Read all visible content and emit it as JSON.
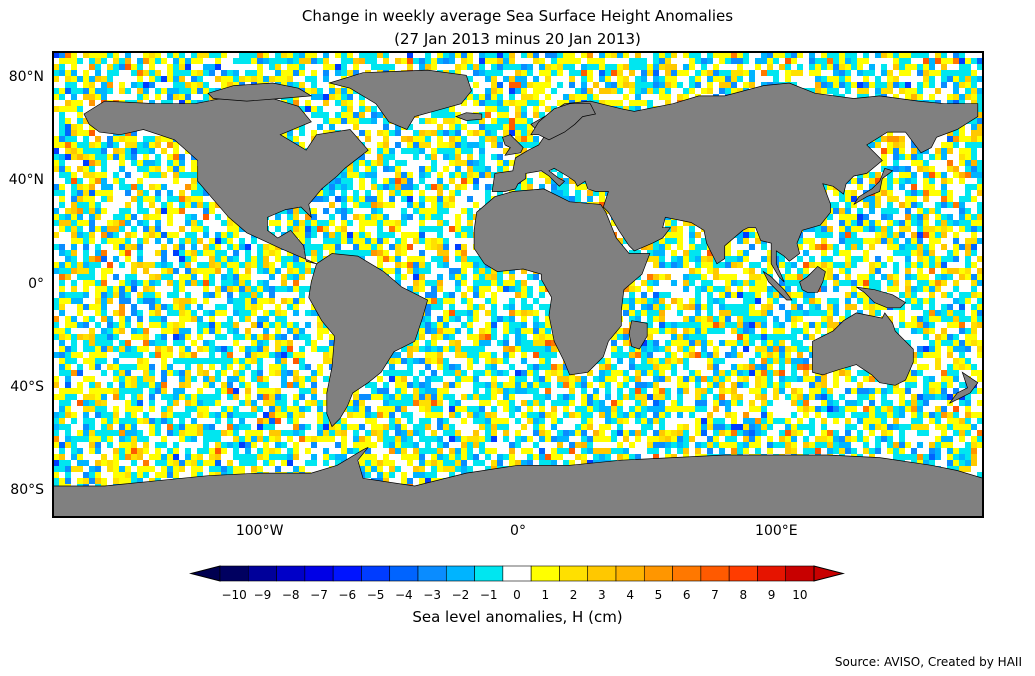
{
  "title_line1": "Change in weekly average Sea Surface Height Anomalies",
  "title_line2": "(27 Jan 2013 minus 20 Jan 2013)",
  "map": {
    "lat_labels": [
      "80°N",
      "40°N",
      "0°",
      "40°S",
      "80°S"
    ],
    "lat_values": [
      80,
      40,
      0,
      -40,
      -80
    ],
    "lon_labels": [
      "100°W",
      "0°",
      "100°E"
    ],
    "lon_values": [
      -100,
      0,
      100
    ],
    "land_color": "#808080",
    "ice_color": "#ffffff",
    "lon_range": [
      -180,
      180
    ],
    "lat_range": [
      -90,
      90
    ]
  },
  "colorbar": {
    "label": "Sea level anomalies, H (cm)",
    "ticks": [
      "−10",
      "−9",
      "−8",
      "−7",
      "−6",
      "−5",
      "−4",
      "−3",
      "−2",
      "−1",
      "0",
      "1",
      "2",
      "3",
      "4",
      "5",
      "6",
      "7",
      "8",
      "9",
      "10"
    ],
    "colors": [
      "#000060",
      "#00009a",
      "#0000c8",
      "#0000e6",
      "#0014ff",
      "#003cff",
      "#0064ff",
      "#0a8cff",
      "#00b4ff",
      "#00e6f0",
      "#ffffff",
      "#ffff00",
      "#ffe000",
      "#ffc800",
      "#ffb400",
      "#ff9600",
      "#ff7800",
      "#ff5a00",
      "#ff3c00",
      "#e61400",
      "#c80000"
    ],
    "under_color": "#000050",
    "over_color": "#c80000"
  },
  "source": "Source: AVISO, Created by HAII"
}
